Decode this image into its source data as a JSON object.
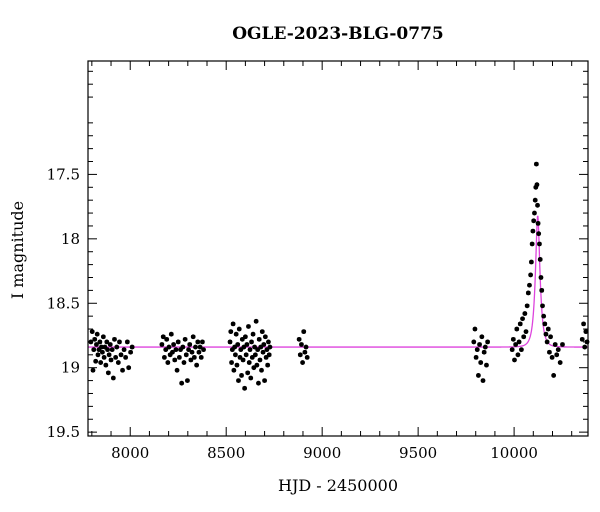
{
  "chart_data": {
    "type": "scatter",
    "title": "OGLE-2023-BLG-0775",
    "xlabel": "HJD - 2450000",
    "ylabel": "I magnitude",
    "xlim": [
      7780,
      10385
    ],
    "ylim": [
      19.53,
      16.62
    ],
    "y_inverted": true,
    "grid": false,
    "x_ticks": [
      8000,
      8500,
      9000,
      9500,
      10000
    ],
    "x_tick_labels": [
      "8000",
      "8500",
      "9000",
      "9500",
      "10000"
    ],
    "y_ticks": [
      17.5,
      18,
      18.5,
      19,
      19.5
    ],
    "y_tick_labels": [
      "17.5",
      "18",
      "18.5",
      "19",
      "19.5"
    ],
    "colors": {
      "data": "#000000",
      "model": "#dd44dd"
    },
    "model": {
      "type": "single-lens",
      "baseline_mag": 18.84,
      "t0": 10123,
      "peak_mag": 17.82,
      "tE_days": 22
    },
    "series": [
      {
        "points": [
          [
            7795,
            18.8
          ],
          [
            7802,
            18.72
          ],
          [
            7806,
            19.02
          ],
          [
            7810,
            18.86
          ],
          [
            7815,
            18.78
          ],
          [
            7820,
            18.95
          ],
          [
            7824,
            18.82
          ],
          [
            7828,
            18.74
          ],
          [
            7832,
            18.9
          ],
          [
            7837,
            18.86
          ],
          [
            7842,
            18.8
          ],
          [
            7846,
            18.96
          ],
          [
            7850,
            18.84
          ],
          [
            7855,
            18.88
          ],
          [
            7860,
            18.76
          ],
          [
            7864,
            18.92
          ],
          [
            7868,
            18.84
          ],
          [
            7873,
            18.98
          ],
          [
            7878,
            18.8
          ],
          [
            7882,
            18.86
          ],
          [
            7886,
            19.04
          ],
          [
            7890,
            18.9
          ],
          [
            7896,
            18.82
          ],
          [
            7900,
            18.94
          ],
          [
            7906,
            18.86
          ],
          [
            7912,
            19.08
          ],
          [
            7918,
            18.78
          ],
          [
            7924,
            18.92
          ],
          [
            7930,
            18.84
          ],
          [
            7938,
            18.96
          ],
          [
            7944,
            18.8
          ],
          [
            7952,
            18.9
          ],
          [
            7960,
            19.02
          ],
          [
            7968,
            18.86
          ],
          [
            7976,
            18.92
          ],
          [
            7985,
            18.8
          ],
          [
            7992,
            19.0
          ],
          [
            8002,
            18.88
          ],
          [
            8010,
            18.84
          ],
          [
            8165,
            18.82
          ],
          [
            8172,
            18.76
          ],
          [
            8178,
            18.92
          ],
          [
            8185,
            18.86
          ],
          [
            8190,
            18.78
          ],
          [
            8196,
            18.96
          ],
          [
            8202,
            18.84
          ],
          [
            8208,
            18.9
          ],
          [
            8214,
            18.74
          ],
          [
            8220,
            18.88
          ],
          [
            8226,
            18.82
          ],
          [
            8232,
            18.94
          ],
          [
            8238,
            18.86
          ],
          [
            8244,
            19.02
          ],
          [
            8250,
            18.8
          ],
          [
            8256,
            18.92
          ],
          [
            8262,
            18.86
          ],
          [
            8268,
            19.12
          ],
          [
            8274,
            18.84
          ],
          [
            8280,
            18.96
          ],
          [
            8286,
            18.78
          ],
          [
            8292,
            18.9
          ],
          [
            8298,
            19.1
          ],
          [
            8304,
            18.86
          ],
          [
            8310,
            18.82
          ],
          [
            8316,
            18.94
          ],
          [
            8322,
            18.88
          ],
          [
            8328,
            18.76
          ],
          [
            8334,
            18.92
          ],
          [
            8340,
            18.84
          ],
          [
            8346,
            18.98
          ],
          [
            8352,
            18.8
          ],
          [
            8358,
            18.88
          ],
          [
            8364,
            18.84
          ],
          [
            8370,
            18.92
          ],
          [
            8376,
            18.8
          ],
          [
            8382,
            18.86
          ],
          [
            8520,
            18.8
          ],
          [
            8524,
            18.72
          ],
          [
            8528,
            18.96
          ],
          [
            8532,
            18.86
          ],
          [
            8536,
            18.66
          ],
          [
            8540,
            19.02
          ],
          [
            8544,
            18.84
          ],
          [
            8548,
            18.9
          ],
          [
            8552,
            18.74
          ],
          [
            8556,
            18.98
          ],
          [
            8560,
            18.82
          ],
          [
            8564,
            19.1
          ],
          [
            8568,
            18.7
          ],
          [
            8572,
            18.92
          ],
          [
            8576,
            18.86
          ],
          [
            8580,
            19.06
          ],
          [
            8584,
            18.78
          ],
          [
            8588,
            18.94
          ],
          [
            8592,
            18.84
          ],
          [
            8596,
            19.16
          ],
          [
            8600,
            18.76
          ],
          [
            8604,
            18.9
          ],
          [
            8608,
            18.82
          ],
          [
            8612,
            19.04
          ],
          [
            8616,
            18.68
          ],
          [
            8620,
            18.96
          ],
          [
            8624,
            18.86
          ],
          [
            8628,
            19.08
          ],
          [
            8632,
            18.8
          ],
          [
            8636,
            18.92
          ],
          [
            8640,
            18.74
          ],
          [
            8644,
            19.0
          ],
          [
            8648,
            18.84
          ],
          [
            8652,
            18.9
          ],
          [
            8656,
            18.64
          ],
          [
            8660,
            18.98
          ],
          [
            8664,
            18.86
          ],
          [
            8668,
            19.12
          ],
          [
            8672,
            18.78
          ],
          [
            8676,
            18.94
          ],
          [
            8680,
            18.84
          ],
          [
            8684,
            19.02
          ],
          [
            8688,
            18.72
          ],
          [
            8692,
            18.88
          ],
          [
            8696,
            18.82
          ],
          [
            8700,
            19.1
          ],
          [
            8704,
            18.76
          ],
          [
            8708,
            18.92
          ],
          [
            8712,
            18.86
          ],
          [
            8716,
            18.98
          ],
          [
            8720,
            18.8
          ],
          [
            8724,
            18.9
          ],
          [
            8728,
            18.84
          ],
          [
            8880,
            18.78
          ],
          [
            8886,
            18.9
          ],
          [
            8892,
            18.82
          ],
          [
            8898,
            18.96
          ],
          [
            8904,
            18.72
          ],
          [
            8910,
            18.88
          ],
          [
            8916,
            18.84
          ],
          [
            8922,
            18.92
          ],
          [
            9790,
            18.8
          ],
          [
            9796,
            18.7
          ],
          [
            9802,
            18.92
          ],
          [
            9808,
            18.86
          ],
          [
            9814,
            19.06
          ],
          [
            9820,
            18.82
          ],
          [
            9826,
            18.96
          ],
          [
            9832,
            18.76
          ],
          [
            9838,
            19.1
          ],
          [
            9844,
            18.88
          ],
          [
            9850,
            18.84
          ],
          [
            9856,
            18.98
          ],
          [
            9862,
            18.8
          ],
          [
            9990,
            18.86
          ],
          [
            9996,
            18.78
          ],
          [
            10002,
            18.94
          ],
          [
            10008,
            18.82
          ],
          [
            10014,
            18.7
          ],
          [
            10020,
            18.9
          ],
          [
            10026,
            18.8
          ],
          [
            10032,
            18.66
          ],
          [
            10038,
            18.86
          ],
          [
            10044,
            18.62
          ],
          [
            10050,
            18.76
          ],
          [
            10056,
            18.58
          ],
          [
            10062,
            18.72
          ],
          [
            10068,
            18.52
          ],
          [
            10074,
            18.42
          ],
          [
            10080,
            18.36
          ],
          [
            10086,
            18.28
          ],
          [
            10090,
            18.18
          ],
          [
            10094,
            18.04
          ],
          [
            10098,
            17.94
          ],
          [
            10102,
            17.86
          ],
          [
            10106,
            17.8
          ],
          [
            10110,
            17.7
          ],
          [
            10113,
            17.6
          ],
          [
            10116,
            17.42
          ],
          [
            10119,
            17.58
          ],
          [
            10122,
            17.74
          ],
          [
            10125,
            17.88
          ],
          [
            10128,
            17.96
          ],
          [
            10132,
            18.04
          ],
          [
            10136,
            18.16
          ],
          [
            10140,
            18.3
          ],
          [
            10144,
            18.4
          ],
          [
            10148,
            18.52
          ],
          [
            10154,
            18.6
          ],
          [
            10160,
            18.66
          ],
          [
            10166,
            18.74
          ],
          [
            10172,
            18.8
          ],
          [
            10178,
            18.7
          ],
          [
            10184,
            18.88
          ],
          [
            10190,
            18.76
          ],
          [
            10198,
            18.92
          ],
          [
            10206,
            19.06
          ],
          [
            10214,
            18.82
          ],
          [
            10222,
            18.9
          ],
          [
            10230,
            18.86
          ],
          [
            10240,
            18.96
          ],
          [
            10252,
            18.82
          ],
          [
            10355,
            18.78
          ],
          [
            10362,
            18.66
          ],
          [
            10368,
            18.84
          ],
          [
            10374,
            18.72
          ],
          [
            10380,
            18.8
          ]
        ]
      }
    ]
  }
}
